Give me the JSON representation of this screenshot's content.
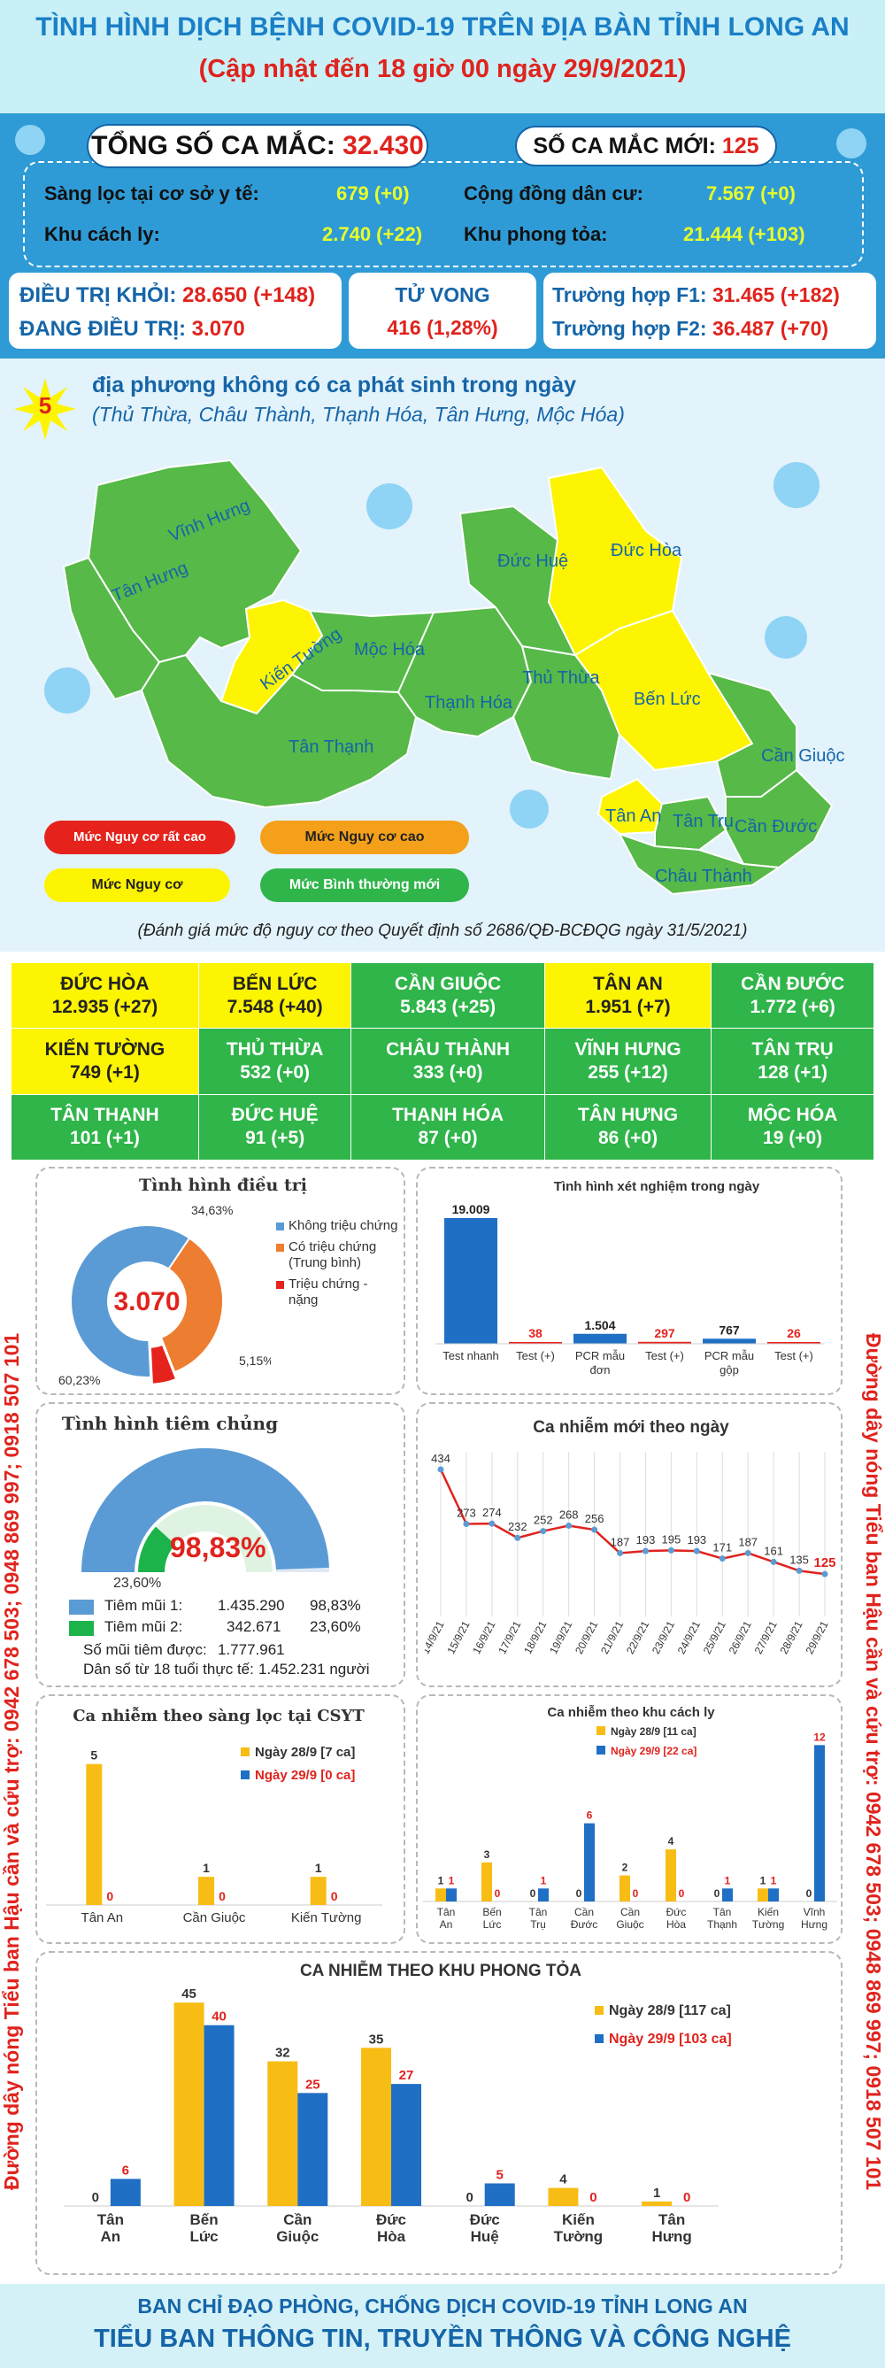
{
  "header": {
    "title": "TÌNH HÌNH DỊCH BỆNH COVID-19 TRÊN ĐỊA BÀN TỈNH LONG AN",
    "subtitle": "(Cập nhật đến 18 giờ 00 ngày 29/9/2021)"
  },
  "totals": {
    "total_label": "TỔNG SỐ CA MẮC:",
    "total_value": "32.430",
    "new_label": "SỐ CA MẮC MỚI:",
    "new_value": "125",
    "rows": [
      {
        "l1": "Sàng lọc tại cơ sở y tế:",
        "v1": "679 (+0)",
        "l2": "Cộng đồng dân cư:",
        "v2": "7.567 (+0)"
      },
      {
        "l1": "Khu cách ly:",
        "v1": "2.740 (+22)",
        "l2": "Khu phong tỏa:",
        "v2": "21.444 (+103)"
      }
    ]
  },
  "status": {
    "recovered_label": "ĐIỀU TRỊ KHỎI:",
    "recovered_value": "28.650 (+148)",
    "treating_label": "ĐANG ĐIỀU TRỊ:",
    "treating_value": "3.070",
    "death_label": "TỬ VONG",
    "death_value": "416 (1,28%)",
    "f1_label": "Trường hợp F1:",
    "f1_value": "31.465 (+182)",
    "f2_label": "Trường hợp F2:",
    "f2_value": "36.487 (+70)"
  },
  "no_case": {
    "count": "5",
    "text": "địa phương không có ca phát sinh trong ngày",
    "list": "(Thủ Thừa, Châu Thành, Thạnh Hóa, Tân Hưng, Mộc Hóa)"
  },
  "map": {
    "regions": [
      "Vĩnh Hưng",
      "Tân Hưng",
      "Kiến Tường",
      "Mộc Hóa",
      "Tân Thạnh",
      "Thạnh Hóa",
      "Thủ Thừa",
      "Đức Huệ",
      "Đức Hòa",
      "Bến Lức",
      "Tân An",
      "Tân Trụ",
      "Cần Giuộc",
      "Cần Đước",
      "Châu Thành"
    ],
    "legend": [
      "Mức Nguy cơ rất cao",
      "Mức Nguy cơ cao",
      "Mức Nguy cơ",
      "Mức Bình thường mới"
    ],
    "legend_colors": [
      "#e5231c",
      "#f5a01a",
      "#fcf400",
      "#2fb54a"
    ],
    "note": "(Đánh giá mức độ nguy cơ theo Quyết định số 2686/QĐ-BCĐQG ngày 31/5/2021)"
  },
  "table": [
    [
      {
        "n": "ĐỨC HÒA",
        "v": "12.935 (+27)",
        "c": "y"
      },
      {
        "n": "BẾN LỨC",
        "v": "7.548 (+40)",
        "c": "y"
      },
      {
        "n": "CẦN GIUỘC",
        "v": "5.843 (+25)",
        "c": "g"
      },
      {
        "n": "TÂN AN",
        "v": "1.951 (+7)",
        "c": "y"
      },
      {
        "n": "CẦN ĐƯỚC",
        "v": "1.772 (+6)",
        "c": "g"
      }
    ],
    [
      {
        "n": "KIẾN TƯỜNG",
        "v": "749 (+1)",
        "c": "y"
      },
      {
        "n": "THỦ THỪA",
        "v": "532 (+0)",
        "c": "g"
      },
      {
        "n": "CHÂU THÀNH",
        "v": "333 (+0)",
        "c": "g"
      },
      {
        "n": "VĨNH HƯNG",
        "v": "255 (+12)",
        "c": "g"
      },
      {
        "n": "TÂN TRỤ",
        "v": "128 (+1)",
        "c": "g"
      }
    ],
    [
      {
        "n": "TÂN THẠNH",
        "v": "101 (+1)",
        "c": "g"
      },
      {
        "n": "ĐỨC HUỆ",
        "v": "91 (+5)",
        "c": "g"
      },
      {
        "n": "THẠNH HÓA",
        "v": "87 (+0)",
        "c": "g"
      },
      {
        "n": "TÂN HƯNG",
        "v": "86 (+0)",
        "c": "g"
      },
      {
        "n": "MỘC HÓA",
        "v": "19 (+0)",
        "c": "g"
      }
    ]
  ],
  "side_text": "Đường dây nóng Tiểu ban Hậu cần và cứu trợ: 0942 678 503; 0948 869 997; 0918 507 101",
  "side_text_right": "Đường dây nóng Tiểu ban Hậu cần và cứu trợ: 0942 678 503; 0948 869 997; 0918 507 101",
  "chart_data": [
    {
      "type": "pie",
      "title": "Tình hình điều trị",
      "center_label": "3.070",
      "slices": [
        {
          "name": "Không triệu chứng",
          "value": 60.23,
          "label": "60,23%",
          "color": "#5b9bd5"
        },
        {
          "name": "Có triệu chứng (Trung bình)",
          "value": 34.63,
          "label": "34,63%",
          "color": "#ed7d31"
        },
        {
          "name": "Triệu chứng - nặng",
          "value": 5.15,
          "label": "5,15%",
          "color": "#e5231c"
        }
      ]
    },
    {
      "type": "bar",
      "title": "Tình hình xét nghiệm trong ngày",
      "categories": [
        "Test nhanh",
        "Test (+)",
        "PCR mẫu đơn",
        "Test (+)",
        "PCR mẫu gộp",
        "Test (+)"
      ],
      "values": [
        19009,
        38,
        1504,
        297,
        767,
        26
      ],
      "labels": [
        "19.009",
        "38",
        "1.504",
        "297",
        "767",
        "26"
      ],
      "colors": [
        "#1f6fc5",
        "#e5231c",
        "#1f6fc5",
        "#e5231c",
        "#1f6fc5",
        "#e5231c"
      ]
    },
    {
      "type": "gauge",
      "title": "Tình hình tiêm chủng",
      "center_label": "98,83%",
      "inner_label": "23,60%",
      "rows": [
        {
          "name": "Tiêm mũi 1:",
          "value": "1.435.290",
          "pct": "98,83%",
          "color": "#5b9bd5"
        },
        {
          "name": "Tiêm mũi 2:",
          "value": "342.671",
          "pct": "23,60%",
          "color": "#1bb34a"
        }
      ],
      "dose1": 98.83,
      "dose2": 23.6,
      "extra": [
        {
          "label": "Số mũi tiêm được:",
          "value": "1.777.961"
        },
        {
          "label": "Dân số từ 18 tuổi thực tế:",
          "value": "1.452.231 người"
        }
      ]
    },
    {
      "type": "line",
      "title": "Ca nhiễm mới theo ngày",
      "x": [
        "14/9/21",
        "15/9/21",
        "16/9/21",
        "17/9/21",
        "18/9/21",
        "19/9/21",
        "20/9/21",
        "21/9/21",
        "22/9/21",
        "23/9/21",
        "24/9/21",
        "25/9/21",
        "26/9/21",
        "27/9/21",
        "28/9/21",
        "29/9/21"
      ],
      "y": [
        434,
        273,
        274,
        232,
        252,
        268,
        256,
        187,
        193,
        195,
        193,
        171,
        187,
        161,
        135,
        125
      ]
    },
    {
      "type": "bar",
      "title": "Ca nhiễm theo sàng lọc tại CSYT",
      "categories": [
        "Tân An",
        "Cần Giuộc",
        "Kiến Tường"
      ],
      "series": [
        {
          "name": "Ngày 28/9 [7 ca]",
          "values": [
            5,
            1,
            1
          ],
          "color": "#f8bd15"
        },
        {
          "name": "Ngày 29/9 [0 ca]",
          "values": [
            0,
            0,
            0
          ],
          "color": "#1f6fc5"
        }
      ]
    },
    {
      "type": "bar",
      "title": "Ca nhiễm theo khu cách ly",
      "categories": [
        "Tân An",
        "Bến Lức",
        "Tân Trụ",
        "Cần Đước",
        "Cần Giuộc",
        "Đức Hòa",
        "Tân Thạnh",
        "Kiến Tường",
        "Vĩnh Hưng"
      ],
      "series": [
        {
          "name": "Ngày 28/9 [11 ca]",
          "values": [
            1,
            3,
            0,
            0,
            2,
            4,
            0,
            1,
            0
          ],
          "color": "#f8bd15"
        },
        {
          "name": "Ngày 29/9 [22 ca]",
          "values": [
            1,
            0,
            1,
            6,
            0,
            0,
            1,
            1,
            12
          ],
          "color": "#1f6fc5"
        }
      ]
    },
    {
      "type": "bar",
      "title": "CA NHIỄM THEO KHU PHONG TỎA",
      "categories": [
        "Tân An",
        "Bến Lức",
        "Cần Giuộc",
        "Đức Hòa",
        "Đức Huệ",
        "Kiến Tường",
        "Tân Hưng"
      ],
      "series": [
        {
          "name": "Ngày 28/9 [117 ca]",
          "values": [
            0,
            45,
            32,
            35,
            0,
            4,
            1
          ],
          "color": "#f8bd15"
        },
        {
          "name": "Ngày 29/9 [103 ca]",
          "values": [
            6,
            40,
            25,
            27,
            5,
            0,
            0
          ],
          "color": "#1f6fc5"
        }
      ]
    }
  ],
  "footer": {
    "line1": "BAN CHỈ ĐẠO PHÒNG, CHỐNG DỊCH COVID-19 TỈNH LONG AN",
    "line2": "TIỂU BAN THÔNG TIN, TRUYỀN THÔNG VÀ CÔNG NGHỆ"
  }
}
